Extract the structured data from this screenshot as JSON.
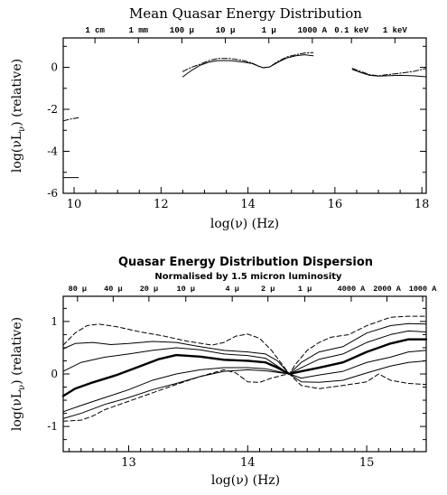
{
  "colors": {
    "ink": "#000000",
    "background": "#ffffff"
  },
  "chart_data": [
    {
      "type": "line",
      "title": "Mean Quasar Energy Distribution",
      "subtitle": "",
      "xlabel": "log(ν) (Hz)",
      "ylabel": "log(νL_ν) (relative)",
      "xlim": [
        9.75,
        18.1
      ],
      "ylim": [
        -6.0,
        1.4
      ],
      "grid": false,
      "x_ticks": [
        10,
        12,
        14,
        16,
        18
      ],
      "y_ticks": [
        -6,
        -4,
        -2,
        0
      ],
      "top_axis": [
        {
          "x": 10.48,
          "label": "1 cm"
        },
        {
          "x": 11.48,
          "label": "1 mm"
        },
        {
          "x": 12.48,
          "label": "100 μ"
        },
        {
          "x": 13.48,
          "label": "10 μ"
        },
        {
          "x": 14.48,
          "label": "1 μ"
        },
        {
          "x": 15.48,
          "label": "1000 A"
        },
        {
          "x": 16.38,
          "label": "0.1 keV"
        },
        {
          "x": 17.38,
          "label": "1 keV"
        }
      ],
      "series": [
        {
          "style": "solid",
          "points": [
            [
              9.75,
              -5.25
            ],
            [
              10.1,
              -5.25
            ]
          ]
        },
        {
          "style": "dashdot",
          "points": [
            [
              9.75,
              -2.55
            ],
            [
              9.95,
              -2.45
            ],
            [
              10.1,
              -2.4
            ]
          ]
        },
        {
          "style": "solid",
          "points": [
            [
              12.5,
              -0.45
            ],
            [
              12.7,
              -0.15
            ],
            [
              12.9,
              0.1
            ],
            [
              13.1,
              0.25
            ],
            [
              13.3,
              0.32
            ],
            [
              13.6,
              0.32
            ],
            [
              13.9,
              0.25
            ],
            [
              14.1,
              0.18
            ],
            [
              14.25,
              0.05
            ],
            [
              14.35,
              -0.02
            ],
            [
              14.5,
              0.02
            ],
            [
              14.7,
              0.25
            ],
            [
              14.9,
              0.45
            ],
            [
              15.1,
              0.55
            ],
            [
              15.3,
              0.6
            ],
            [
              15.5,
              0.55
            ]
          ]
        },
        {
          "style": "dashdot",
          "points": [
            [
              12.5,
              -0.2
            ],
            [
              12.7,
              0.0
            ],
            [
              12.9,
              0.15
            ],
            [
              13.1,
              0.32
            ],
            [
              13.3,
              0.42
            ],
            [
              13.6,
              0.42
            ],
            [
              13.9,
              0.32
            ],
            [
              14.1,
              0.2
            ],
            [
              14.25,
              0.05
            ],
            [
              14.35,
              -0.02
            ],
            [
              14.5,
              0.02
            ],
            [
              14.7,
              0.3
            ],
            [
              14.9,
              0.5
            ],
            [
              15.1,
              0.6
            ],
            [
              15.3,
              0.68
            ],
            [
              15.5,
              0.7
            ]
          ]
        },
        {
          "style": "solid",
          "points": [
            [
              16.4,
              -0.1
            ],
            [
              16.6,
              -0.25
            ],
            [
              16.8,
              -0.38
            ],
            [
              17.0,
              -0.42
            ],
            [
              17.2,
              -0.4
            ],
            [
              17.5,
              -0.38
            ],
            [
              17.8,
              -0.4
            ],
            [
              18.1,
              -0.45
            ]
          ]
        },
        {
          "style": "dashdot",
          "points": [
            [
              16.4,
              -0.05
            ],
            [
              16.6,
              -0.2
            ],
            [
              16.8,
              -0.35
            ],
            [
              17.0,
              -0.4
            ],
            [
              17.2,
              -0.35
            ],
            [
              17.5,
              -0.28
            ],
            [
              17.8,
              -0.2
            ],
            [
              18.1,
              -0.05
            ]
          ]
        }
      ]
    },
    {
      "type": "line",
      "title": "Quasar Energy Distribution Dispersion",
      "subtitle": "Normalised by 1.5 micron luminosity",
      "xlabel": "log(ν) (Hz)",
      "ylabel": "log(νL_ν) (relative)",
      "xlim": [
        12.45,
        15.5
      ],
      "ylim": [
        -1.48,
        1.48
      ],
      "grid": false,
      "x_ticks": [
        13,
        14,
        15
      ],
      "y_ticks": [
        -1,
        0,
        1
      ],
      "top_axis": [
        {
          "x": 12.57,
          "label": "80 μ"
        },
        {
          "x": 12.87,
          "label": "40 μ"
        },
        {
          "x": 13.17,
          "label": "20 μ"
        },
        {
          "x": 13.48,
          "label": "10 μ"
        },
        {
          "x": 13.87,
          "label": "4 μ"
        },
        {
          "x": 14.17,
          "label": "2 μ"
        },
        {
          "x": 14.48,
          "label": "1 μ"
        },
        {
          "x": 14.87,
          "label": "4000 A"
        },
        {
          "x": 15.17,
          "label": "2000 A"
        },
        {
          "x": 15.47,
          "label": "1000 A"
        }
      ],
      "series": [
        {
          "style": "dashed",
          "points": [
            [
              12.45,
              0.55
            ],
            [
              12.55,
              0.78
            ],
            [
              12.65,
              0.92
            ],
            [
              12.75,
              0.95
            ],
            [
              12.9,
              0.9
            ],
            [
              13.1,
              0.8
            ],
            [
              13.3,
              0.72
            ],
            [
              13.5,
              0.62
            ],
            [
              13.7,
              0.55
            ],
            [
              13.8,
              0.6
            ],
            [
              13.9,
              0.72
            ],
            [
              14.0,
              0.76
            ],
            [
              14.1,
              0.68
            ],
            [
              14.2,
              0.45
            ],
            [
              14.3,
              0.15
            ],
            [
              14.35,
              0.0
            ],
            [
              14.4,
              0.18
            ],
            [
              14.5,
              0.45
            ],
            [
              14.6,
              0.6
            ],
            [
              14.7,
              0.7
            ],
            [
              14.85,
              0.75
            ],
            [
              15.0,
              0.92
            ],
            [
              15.2,
              1.08
            ],
            [
              15.35,
              1.1
            ],
            [
              15.5,
              1.1
            ]
          ]
        },
        {
          "style": "solid",
          "points": [
            [
              12.45,
              0.48
            ],
            [
              12.55,
              0.58
            ],
            [
              12.7,
              0.6
            ],
            [
              12.85,
              0.56
            ],
            [
              13.0,
              0.58
            ],
            [
              13.2,
              0.62
            ],
            [
              13.4,
              0.6
            ],
            [
              13.6,
              0.52
            ],
            [
              13.8,
              0.45
            ],
            [
              14.0,
              0.42
            ],
            [
              14.15,
              0.38
            ],
            [
              14.25,
              0.25
            ],
            [
              14.35,
              0.0
            ],
            [
              14.45,
              0.22
            ],
            [
              14.6,
              0.42
            ],
            [
              14.8,
              0.52
            ],
            [
              15.0,
              0.78
            ],
            [
              15.2,
              0.92
            ],
            [
              15.35,
              0.96
            ],
            [
              15.5,
              0.95
            ]
          ]
        },
        {
          "style": "solid",
          "points": [
            [
              12.45,
              0.05
            ],
            [
              12.6,
              0.22
            ],
            [
              12.8,
              0.32
            ],
            [
              13.0,
              0.38
            ],
            [
              13.2,
              0.45
            ],
            [
              13.4,
              0.5
            ],
            [
              13.6,
              0.46
            ],
            [
              13.8,
              0.38
            ],
            [
              14.0,
              0.35
            ],
            [
              14.15,
              0.3
            ],
            [
              14.25,
              0.15
            ],
            [
              14.35,
              0.0
            ],
            [
              14.45,
              0.12
            ],
            [
              14.6,
              0.28
            ],
            [
              14.8,
              0.38
            ],
            [
              15.0,
              0.6
            ],
            [
              15.2,
              0.75
            ],
            [
              15.35,
              0.82
            ],
            [
              15.5,
              0.8
            ]
          ]
        },
        {
          "style": "bold",
          "points": [
            [
              12.45,
              -0.42
            ],
            [
              12.55,
              -0.28
            ],
            [
              12.7,
              -0.16
            ],
            [
              12.9,
              -0.02
            ],
            [
              13.1,
              0.15
            ],
            [
              13.25,
              0.28
            ],
            [
              13.4,
              0.36
            ],
            [
              13.6,
              0.33
            ],
            [
              13.8,
              0.27
            ],
            [
              14.0,
              0.25
            ],
            [
              14.15,
              0.22
            ],
            [
              14.25,
              0.12
            ],
            [
              14.35,
              0.0
            ],
            [
              14.45,
              0.05
            ],
            [
              14.6,
              0.12
            ],
            [
              14.8,
              0.22
            ],
            [
              15.0,
              0.42
            ],
            [
              15.2,
              0.58
            ],
            [
              15.35,
              0.66
            ],
            [
              15.5,
              0.66
            ]
          ]
        },
        {
          "style": "solid",
          "points": [
            [
              12.45,
              -0.72
            ],
            [
              12.6,
              -0.6
            ],
            [
              12.8,
              -0.45
            ],
            [
              13.0,
              -0.3
            ],
            [
              13.2,
              -0.12
            ],
            [
              13.4,
              0.0
            ],
            [
              13.6,
              0.08
            ],
            [
              13.8,
              0.12
            ],
            [
              14.0,
              0.12
            ],
            [
              14.15,
              0.1
            ],
            [
              14.25,
              0.05
            ],
            [
              14.35,
              0.0
            ],
            [
              14.45,
              -0.08
            ],
            [
              14.6,
              -0.02
            ],
            [
              14.8,
              0.05
            ],
            [
              15.0,
              0.22
            ],
            [
              15.2,
              0.32
            ],
            [
              15.35,
              0.42
            ],
            [
              15.5,
              0.45
            ]
          ]
        },
        {
          "style": "solid",
          "points": [
            [
              12.45,
              -0.85
            ],
            [
              12.6,
              -0.75
            ],
            [
              12.8,
              -0.58
            ],
            [
              13.0,
              -0.45
            ],
            [
              13.2,
              -0.3
            ],
            [
              13.4,
              -0.18
            ],
            [
              13.6,
              -0.05
            ],
            [
              13.8,
              0.05
            ],
            [
              14.0,
              0.08
            ],
            [
              14.15,
              0.06
            ],
            [
              14.25,
              0.03
            ],
            [
              14.35,
              0.0
            ],
            [
              14.45,
              -0.15
            ],
            [
              14.6,
              -0.16
            ],
            [
              14.8,
              -0.12
            ],
            [
              15.0,
              0.02
            ],
            [
              15.2,
              0.15
            ],
            [
              15.35,
              0.22
            ],
            [
              15.5,
              0.25
            ]
          ]
        },
        {
          "style": "dashed",
          "points": [
            [
              12.45,
              -0.9
            ],
            [
              12.6,
              -0.88
            ],
            [
              12.7,
              -0.8
            ],
            [
              12.8,
              -0.68
            ],
            [
              13.0,
              -0.52
            ],
            [
              13.2,
              -0.36
            ],
            [
              13.4,
              -0.2
            ],
            [
              13.6,
              -0.05
            ],
            [
              13.8,
              0.08
            ],
            [
              13.9,
              0.02
            ],
            [
              14.0,
              -0.15
            ],
            [
              14.1,
              -0.16
            ],
            [
              14.2,
              -0.08
            ],
            [
              14.3,
              -0.02
            ],
            [
              14.35,
              0.0
            ],
            [
              14.45,
              -0.22
            ],
            [
              14.6,
              -0.28
            ],
            [
              14.8,
              -0.22
            ],
            [
              15.0,
              -0.15
            ],
            [
              15.1,
              0.0
            ],
            [
              15.2,
              -0.12
            ],
            [
              15.35,
              -0.18
            ],
            [
              15.5,
              -0.2
            ]
          ]
        }
      ]
    }
  ]
}
